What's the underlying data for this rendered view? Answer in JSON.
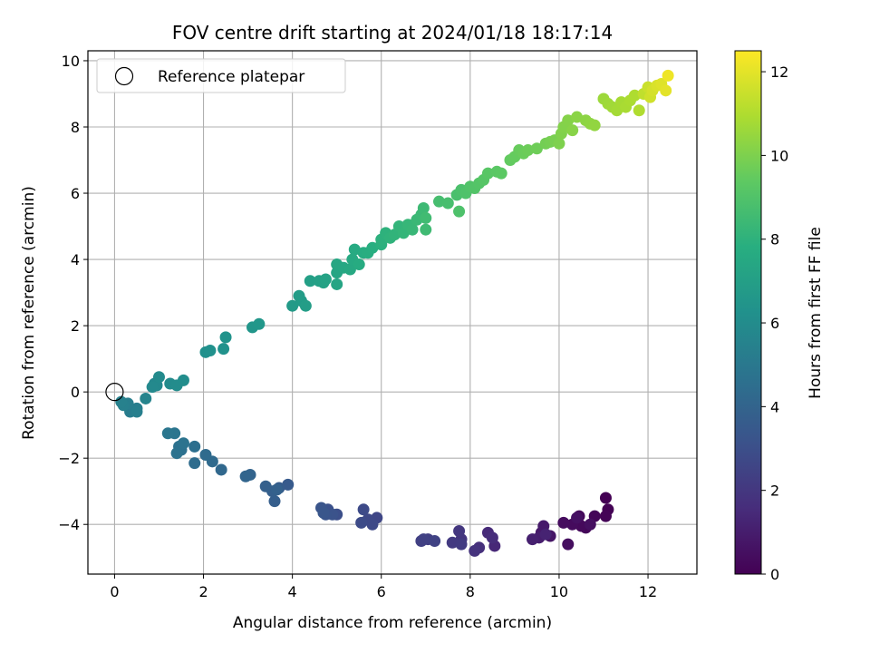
{
  "chart_data": {
    "type": "scatter",
    "title": "FOV centre drift starting at 2024/01/18 18:17:14",
    "xlabel": "Angular distance from reference (arcmin)",
    "ylabel": "Rotation from reference (arcmin)",
    "colorbar_label": "Hours from first FF file",
    "xlim": [
      -0.6,
      13.1
    ],
    "ylim": [
      -5.5,
      10.3
    ],
    "x_ticks": [
      0,
      2,
      4,
      6,
      8,
      10,
      12
    ],
    "y_ticks": [
      -4,
      -2,
      0,
      2,
      4,
      6,
      8,
      10
    ],
    "colorbar_ticks": [
      0,
      2,
      4,
      6,
      8,
      10,
      12
    ],
    "colorbar_range": [
      0,
      12.5
    ],
    "colormap": "viridis",
    "grid": true,
    "legend": {
      "placement": "upper-left",
      "entries": [
        "Reference platepar"
      ]
    },
    "reference_point": {
      "x": 0,
      "y": 0,
      "label": "Reference platepar"
    },
    "series": [
      {
        "columns": [
          "x",
          "y",
          "hours"
        ],
        "points": [
          [
            11.05,
            -3.2,
            0.0
          ],
          [
            11.1,
            -3.55,
            0.05
          ],
          [
            11.05,
            -3.75,
            0.1
          ],
          [
            10.8,
            -3.75,
            0.15
          ],
          [
            10.6,
            -4.1,
            0.2
          ],
          [
            10.45,
            -3.75,
            0.25
          ],
          [
            10.5,
            -4.05,
            0.3
          ],
          [
            10.3,
            -4.0,
            0.35
          ],
          [
            10.1,
            -3.95,
            0.4
          ],
          [
            10.2,
            -4.6,
            0.45
          ],
          [
            10.7,
            -4.0,
            0.5
          ],
          [
            10.4,
            -3.8,
            0.55
          ],
          [
            9.8,
            -4.35,
            0.7
          ],
          [
            9.6,
            -4.25,
            0.8
          ],
          [
            9.65,
            -4.05,
            0.9
          ],
          [
            9.55,
            -4.4,
            1.0
          ],
          [
            9.4,
            -4.45,
            1.1
          ],
          [
            9.7,
            -4.3,
            1.2
          ],
          [
            8.55,
            -4.65,
            1.4
          ],
          [
            8.4,
            -4.25,
            1.5
          ],
          [
            8.5,
            -4.4,
            1.6
          ],
          [
            8.2,
            -4.7,
            1.7
          ],
          [
            8.1,
            -4.8,
            1.8
          ],
          [
            7.8,
            -4.45,
            1.9
          ],
          [
            7.75,
            -4.2,
            2.0
          ],
          [
            7.6,
            -4.55,
            2.1
          ],
          [
            7.8,
            -4.6,
            2.15
          ],
          [
            7.05,
            -4.45,
            2.3
          ],
          [
            6.9,
            -4.5,
            2.35
          ],
          [
            6.95,
            -4.45,
            2.4
          ],
          [
            7.2,
            -4.5,
            2.45
          ],
          [
            5.9,
            -3.8,
            2.6
          ],
          [
            5.7,
            -3.85,
            2.7
          ],
          [
            5.8,
            -4.0,
            2.75
          ],
          [
            5.6,
            -3.55,
            2.8
          ],
          [
            5.55,
            -3.95,
            2.85
          ],
          [
            5.0,
            -3.7,
            3.0
          ],
          [
            4.8,
            -3.55,
            3.1
          ],
          [
            4.9,
            -3.7,
            3.15
          ],
          [
            4.75,
            -3.7,
            3.2
          ],
          [
            4.65,
            -3.5,
            3.25
          ],
          [
            4.7,
            -3.65,
            3.3
          ],
          [
            3.9,
            -2.8,
            3.5
          ],
          [
            3.7,
            -2.9,
            3.6
          ],
          [
            3.6,
            -3.3,
            3.7
          ],
          [
            3.55,
            -3.0,
            3.75
          ],
          [
            3.4,
            -2.85,
            3.8
          ],
          [
            3.65,
            -2.95,
            3.85
          ],
          [
            3.05,
            -2.5,
            4.0
          ],
          [
            2.95,
            -2.55,
            4.05
          ],
          [
            2.4,
            -2.35,
            4.2
          ],
          [
            2.2,
            -2.1,
            4.3
          ],
          [
            2.05,
            -1.9,
            4.35
          ],
          [
            1.8,
            -2.15,
            4.4
          ],
          [
            1.8,
            -1.65,
            4.55
          ],
          [
            1.5,
            -1.75,
            4.6
          ],
          [
            1.45,
            -1.65,
            4.65
          ],
          [
            1.4,
            -1.85,
            4.7
          ],
          [
            1.55,
            -1.55,
            4.75
          ],
          [
            1.35,
            -1.25,
            4.85
          ],
          [
            1.2,
            -1.25,
            4.9
          ],
          [
            0.35,
            -0.6,
            5.2
          ],
          [
            0.5,
            -0.5,
            5.25
          ],
          [
            0.3,
            -0.35,
            5.3
          ],
          [
            0.5,
            -0.6,
            5.35
          ],
          [
            0.2,
            -0.4,
            5.4
          ],
          [
            0.15,
            -0.3,
            5.45
          ],
          [
            0.7,
            -0.2,
            5.6
          ],
          [
            0.9,
            0.25,
            5.7
          ],
          [
            0.95,
            0.2,
            5.8
          ],
          [
            0.85,
            0.15,
            5.85
          ],
          [
            1.0,
            0.45,
            5.9
          ],
          [
            1.25,
            0.25,
            5.95
          ],
          [
            1.4,
            0.2,
            6.0
          ],
          [
            1.55,
            0.35,
            6.05
          ],
          [
            2.05,
            1.2,
            6.2
          ],
          [
            2.15,
            1.25,
            6.25
          ],
          [
            2.45,
            1.3,
            6.3
          ],
          [
            2.5,
            1.65,
            6.35
          ],
          [
            3.1,
            1.95,
            6.5
          ],
          [
            3.25,
            2.05,
            6.55
          ],
          [
            4.0,
            2.6,
            6.75
          ],
          [
            4.2,
            2.75,
            6.8
          ],
          [
            4.15,
            2.9,
            6.85
          ],
          [
            4.3,
            2.6,
            6.9
          ],
          [
            4.4,
            3.35,
            7.0
          ],
          [
            4.6,
            3.35,
            7.05
          ],
          [
            4.7,
            3.3,
            7.1
          ],
          [
            4.75,
            3.4,
            7.15
          ],
          [
            5.0,
            3.25,
            7.3
          ],
          [
            5.0,
            3.6,
            7.35
          ],
          [
            5.0,
            3.85,
            7.4
          ],
          [
            5.15,
            3.75,
            7.45
          ],
          [
            5.3,
            3.7,
            7.5
          ],
          [
            5.35,
            4.0,
            7.55
          ],
          [
            5.4,
            4.3,
            7.6
          ],
          [
            5.5,
            3.85,
            7.65
          ],
          [
            5.6,
            4.2,
            7.7
          ],
          [
            5.7,
            4.2,
            7.75
          ],
          [
            5.8,
            4.35,
            7.8
          ],
          [
            6.0,
            4.45,
            7.9
          ],
          [
            6.0,
            4.6,
            7.95
          ],
          [
            6.1,
            4.8,
            8.0
          ],
          [
            6.2,
            4.65,
            8.05
          ],
          [
            6.3,
            4.75,
            8.1
          ],
          [
            6.4,
            5.0,
            8.15
          ],
          [
            6.5,
            4.8,
            8.2
          ],
          [
            6.6,
            5.05,
            8.25
          ],
          [
            6.7,
            4.9,
            8.3
          ],
          [
            6.8,
            5.2,
            8.35
          ],
          [
            6.9,
            5.35,
            8.4
          ],
          [
            6.95,
            5.55,
            8.45
          ],
          [
            7.0,
            4.9,
            8.5
          ],
          [
            7.0,
            5.25,
            8.55
          ],
          [
            7.3,
            5.75,
            8.7
          ],
          [
            7.5,
            5.7,
            8.75
          ],
          [
            7.7,
            5.95,
            8.8
          ],
          [
            7.8,
            6.1,
            8.85
          ],
          [
            7.75,
            5.45,
            8.9
          ],
          [
            7.9,
            6.0,
            8.95
          ],
          [
            8.0,
            6.2,
            9.0
          ],
          [
            8.1,
            6.15,
            9.05
          ],
          [
            8.2,
            6.3,
            9.1
          ],
          [
            8.3,
            6.4,
            9.15
          ],
          [
            8.4,
            6.6,
            9.2
          ],
          [
            8.6,
            6.65,
            9.25
          ],
          [
            8.7,
            6.6,
            9.3
          ],
          [
            8.9,
            7.0,
            9.45
          ],
          [
            9.0,
            7.1,
            9.5
          ],
          [
            9.1,
            7.3,
            9.55
          ],
          [
            9.2,
            7.2,
            9.6
          ],
          [
            9.3,
            7.3,
            9.65
          ],
          [
            9.5,
            7.35,
            9.7
          ],
          [
            9.7,
            7.5,
            9.8
          ],
          [
            9.8,
            7.55,
            9.85
          ],
          [
            9.9,
            7.6,
            9.9
          ],
          [
            10.0,
            7.5,
            10.0
          ],
          [
            10.05,
            7.8,
            10.05
          ],
          [
            10.1,
            8.0,
            10.1
          ],
          [
            10.2,
            8.2,
            10.15
          ],
          [
            10.3,
            7.9,
            10.2
          ],
          [
            10.4,
            8.3,
            10.25
          ],
          [
            10.6,
            8.2,
            10.3
          ],
          [
            10.7,
            8.1,
            10.35
          ],
          [
            10.8,
            8.05,
            10.4
          ],
          [
            11.0,
            8.85,
            10.6
          ],
          [
            11.1,
            8.7,
            10.65
          ],
          [
            11.2,
            8.6,
            10.7
          ],
          [
            11.3,
            8.5,
            10.75
          ],
          [
            11.4,
            8.75,
            10.8
          ],
          [
            11.5,
            8.6,
            10.85
          ],
          [
            11.6,
            8.8,
            10.9
          ],
          [
            11.7,
            8.95,
            10.95
          ],
          [
            11.8,
            8.5,
            11.0
          ],
          [
            11.9,
            9.0,
            11.3
          ],
          [
            12.0,
            9.2,
            11.5
          ],
          [
            12.05,
            8.9,
            11.6
          ],
          [
            12.1,
            9.1,
            11.7
          ],
          [
            12.2,
            9.25,
            11.8
          ],
          [
            12.3,
            9.3,
            11.9
          ],
          [
            12.4,
            9.1,
            12.0
          ],
          [
            12.45,
            9.55,
            12.2
          ]
        ]
      }
    ]
  }
}
